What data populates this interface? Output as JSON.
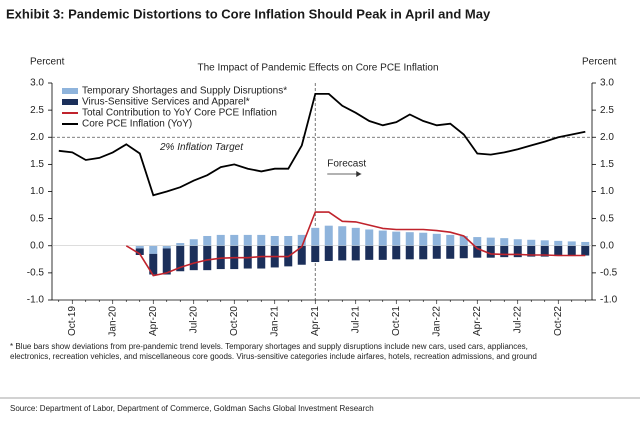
{
  "header": {
    "title": "Exhibit 3: Pandemic Distortions to Core Inflation Should Peak in April and May"
  },
  "chart_data": {
    "type": "bar",
    "title": "The Impact of Pandemic Effects on Core PCE Inflation",
    "y_label": "Percent",
    "y2_label": "Percent",
    "categories": [
      null,
      "Oct-19",
      null,
      null,
      "Jan-20",
      null,
      null,
      "Apr-20",
      null,
      null,
      "Jul-20",
      null,
      null,
      "Oct-20",
      null,
      null,
      "Jan-21",
      null,
      null,
      "Apr-21",
      null,
      null,
      "Jul-21",
      null,
      null,
      "Oct-21",
      null,
      null,
      "Jan-22",
      null,
      null,
      "Apr-22",
      null,
      null,
      "Jul-22",
      null,
      null,
      "Oct-22",
      null,
      null
    ],
    "series": [
      {
        "name": "Temporary Shortages and Supply Disruptions*",
        "type": "bar",
        "color": "#8fb4dc",
        "values": [
          null,
          null,
          null,
          null,
          null,
          null,
          -0.05,
          -0.15,
          -0.05,
          0.05,
          0.12,
          0.18,
          0.2,
          0.2,
          0.2,
          0.2,
          0.18,
          0.18,
          0.2,
          0.33,
          0.37,
          0.36,
          0.33,
          0.3,
          0.28,
          0.26,
          0.25,
          0.24,
          0.22,
          0.2,
          0.18,
          0.16,
          0.15,
          0.14,
          0.12,
          0.11,
          0.1,
          0.09,
          0.08,
          0.07
        ]
      },
      {
        "name": "Virus-Sensitive Services and Apparel*",
        "type": "bar",
        "color": "#1b2f5a",
        "values": [
          null,
          null,
          null,
          null,
          null,
          null,
          -0.12,
          -0.38,
          -0.48,
          -0.47,
          -0.45,
          -0.45,
          -0.43,
          -0.43,
          -0.42,
          -0.42,
          -0.4,
          -0.38,
          -0.35,
          -0.3,
          -0.28,
          -0.27,
          -0.27,
          -0.26,
          -0.26,
          -0.25,
          -0.25,
          -0.25,
          -0.24,
          -0.24,
          -0.23,
          -0.22,
          -0.22,
          -0.21,
          -0.21,
          -0.2,
          -0.2,
          -0.19,
          -0.19,
          -0.18
        ]
      },
      {
        "name": "Total Contribution to YoY Core PCE Inflation",
        "type": "line",
        "color": "#c0232c",
        "values": [
          null,
          null,
          null,
          null,
          null,
          0.0,
          -0.15,
          -0.55,
          -0.5,
          -0.4,
          -0.32,
          -0.26,
          -0.23,
          -0.22,
          -0.22,
          -0.2,
          -0.2,
          -0.2,
          -0.02,
          0.62,
          0.62,
          0.45,
          0.44,
          0.38,
          0.32,
          0.3,
          0.3,
          0.3,
          0.28,
          0.25,
          0.18,
          -0.05,
          -0.15,
          -0.16,
          -0.16,
          -0.17,
          -0.17,
          -0.18,
          -0.18,
          -0.18
        ]
      },
      {
        "name": "Core PCE Inflation (YoY)",
        "type": "line",
        "color": "#000000",
        "values": [
          1.75,
          1.72,
          1.58,
          1.62,
          1.72,
          1.87,
          1.7,
          0.93,
          1.0,
          1.08,
          1.2,
          1.3,
          1.45,
          1.5,
          1.42,
          1.37,
          1.42,
          1.42,
          1.85,
          2.8,
          2.8,
          2.58,
          2.45,
          2.3,
          2.22,
          2.28,
          2.42,
          2.3,
          2.22,
          2.25,
          2.05,
          1.7,
          1.68,
          1.72,
          1.78,
          1.85,
          1.92,
          2.0,
          2.05,
          2.1
        ]
      }
    ],
    "ylim": [
      -1,
      3
    ],
    "yticks": [
      {
        "value": -1,
        "label": "-1.0"
      },
      {
        "value": -0.5,
        "label": "-0.5"
      },
      {
        "value": 0,
        "label": "0.0"
      },
      {
        "value": 0.5,
        "label": "0.5"
      },
      {
        "value": 1,
        "label": "1.0"
      },
      {
        "value": 1.5,
        "label": "1.5"
      },
      {
        "value": 2,
        "label": "2.0"
      },
      {
        "value": 2.5,
        "label": "2.5"
      },
      {
        "value": 3,
        "label": "3.0"
      }
    ],
    "y2lim": [
      -1,
      3
    ],
    "y2ticks": [
      {
        "value": -1,
        "label": "-1.0"
      },
      {
        "value": -0.5,
        "label": "-0.5"
      },
      {
        "value": 0,
        "label": "0.0"
      },
      {
        "value": 0.5,
        "label": "0.5"
      },
      {
        "value": 1,
        "label": "1.0"
      },
      {
        "value": 1.5,
        "label": "1.5"
      },
      {
        "value": 2,
        "label": "2.0"
      },
      {
        "value": 2.5,
        "label": "2.5"
      },
      {
        "value": 3,
        "label": "3.0"
      }
    ],
    "reference_line": {
      "value": 2,
      "label": "2% Inflation Target"
    },
    "forecast": {
      "label": "Forecast",
      "category": "Apr-21"
    },
    "legend": "upper left",
    "footnote": [
      "* Blue bars show deviations from pre-pandemic trend levels.  Temporary shortages and supply disruptions include new cars, used cars, appliances,",
      "electronics, recreation vehicles, and miscellaneous core goods. Virus-sensitive categories include airfares, hotels, recreation admissions, and ground"
    ]
  },
  "footer": {
    "source": "Source: Department of Labor, Department of Commerce, Goldman Sachs Global Investment Research"
  }
}
